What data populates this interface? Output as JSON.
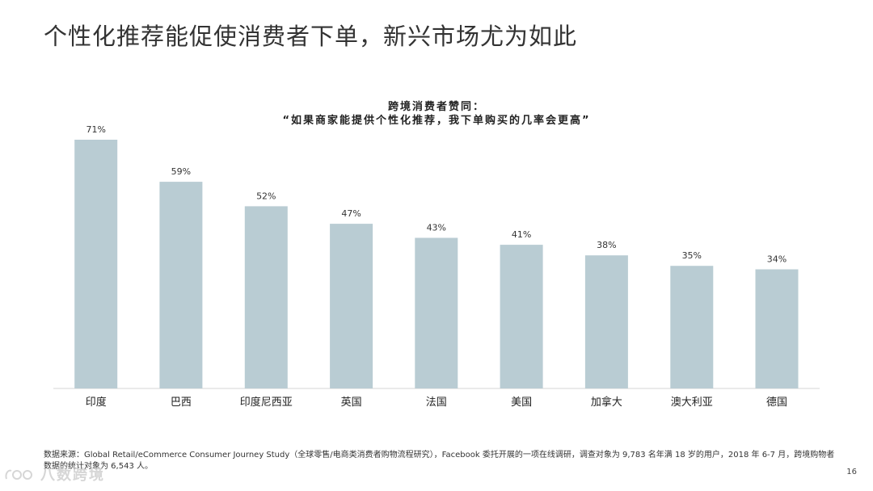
{
  "page": {
    "title": "个性化推荐能促使消费者下单，新兴市场尤为如此",
    "page_number": "16",
    "source_note": "数据来源：Global Retail/eCommerce Consumer Journey Study（全球零售/电商类消费者购物流程研究），Facebook 委托开展的一项在线调研，调查对象为 9,783 名年满 18 岁的用户，2018 年 6-7 月，跨境购物者数据的统计对象为 6,543 人。",
    "watermark_text": "八数跨境"
  },
  "colors": {
    "bar": "#b9ccd3",
    "axis": "#d6d6d6",
    "label": "#333333"
  },
  "chart_data": {
    "type": "bar",
    "title_line1": "跨境消费者赞同：",
    "title_line2": "“如果商家能提供个性化推荐，我下单购买的几率会更高”",
    "categories": [
      "印度",
      "巴西",
      "印度尼西亚",
      "英国",
      "法国",
      "美国",
      "加拿大",
      "澳大利亚",
      "德国"
    ],
    "values": [
      71,
      59,
      52,
      47,
      43,
      41,
      38,
      35,
      34
    ],
    "value_labels": [
      "71%",
      "59%",
      "52%",
      "47%",
      "43%",
      "41%",
      "38%",
      "35%",
      "34%"
    ],
    "unit": "%",
    "ylim": [
      0,
      71
    ],
    "xlabel": "",
    "ylabel": "",
    "grid": false,
    "legend": "none"
  }
}
